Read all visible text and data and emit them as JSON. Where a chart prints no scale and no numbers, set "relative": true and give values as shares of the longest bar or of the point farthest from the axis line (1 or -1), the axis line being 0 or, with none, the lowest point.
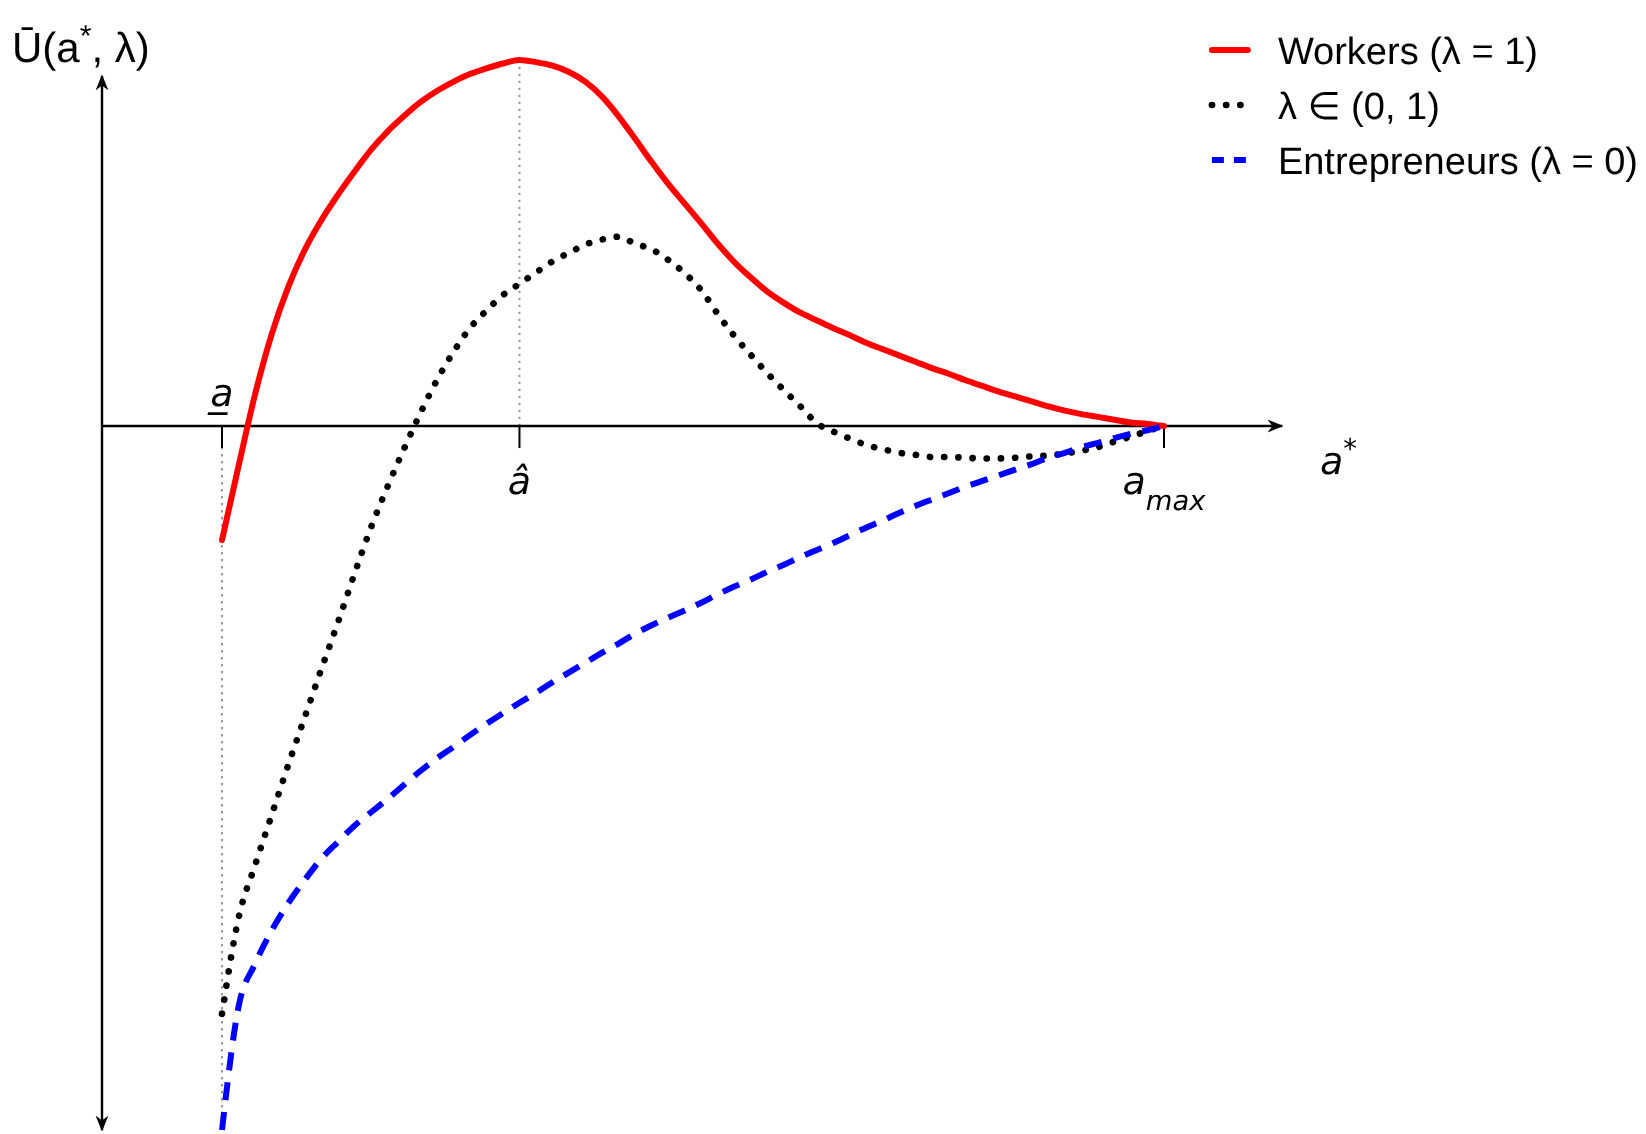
{
  "chart_data": {
    "type": "line",
    "relative": true,
    "xlabel": "a$^{*}$",
    "ylabel": "Ū(a$^{*}$, λ)",
    "tick_labels": "x",
    "legend": "top right",
    "categories": [
      "a̲",
      null,
      null,
      null,
      null,
      null,
      null,
      null,
      null,
      null,
      null,
      null,
      null,
      null,
      null,
      null,
      null,
      null,
      "â",
      null,
      null,
      null,
      null,
      null,
      null,
      null,
      null,
      null,
      null,
      null,
      null,
      null,
      null,
      null,
      null,
      null,
      null,
      null,
      null,
      null,
      null,
      null,
      null,
      null,
      null,
      null,
      null,
      null,
      null,
      null,
      null,
      null,
      null,
      null,
      null,
      null,
      null,
      "a$_{max}$"
    ],
    "series": [
      {
        "name": "Workers (λ = 1)",
        "color": "#ff0000",
        "line_style": "solid",
        "values": [
          -0.162,
          -0.057,
          0.045,
          0.13,
          0.197,
          0.25,
          0.292,
          0.328,
          0.361,
          0.392,
          0.418,
          0.44,
          0.46,
          0.476,
          0.489,
          0.5,
          0.508,
          0.515,
          0.52,
          0.517,
          0.512,
          0.503,
          0.489,
          0.468,
          0.44,
          0.408,
          0.375,
          0.344,
          0.316,
          0.288,
          0.259,
          0.233,
          0.211,
          0.191,
          0.175,
          0.161,
          0.15,
          0.139,
          0.129,
          0.118,
          0.109,
          0.1,
          0.091,
          0.082,
          0.074,
          0.065,
          0.057,
          0.049,
          0.042,
          0.035,
          0.028,
          0.022,
          0.017,
          0.013,
          0.009,
          0.005,
          0.003,
          0
        ]
      },
      {
        "name": "λ ∈ (0, 1)",
        "color": "#000000",
        "line_style": "dotted",
        "values": [
          -0.835,
          -0.699,
          -0.624,
          -0.553,
          -0.482,
          -0.414,
          -0.346,
          -0.28,
          -0.211,
          -0.145,
          -0.087,
          -0.033,
          0.018,
          0.065,
          0.105,
          0.139,
          0.164,
          0.186,
          0.202,
          0.218,
          0.234,
          0.246,
          0.258,
          0.265,
          0.269,
          0.259,
          0.251,
          0.236,
          0.217,
          0.193,
          0.159,
          0.128,
          0.101,
          0.075,
          0.051,
          0.028,
          0.004,
          -0.008,
          -0.018,
          -0.027,
          -0.033,
          -0.038,
          -0.041,
          -0.044,
          -0.044,
          -0.045,
          -0.046,
          -0.046,
          -0.045,
          -0.043,
          -0.042,
          -0.039,
          -0.035,
          -0.03,
          -0.022,
          -0.015,
          -0.007,
          0
        ]
      },
      {
        "name": "Entrepreneurs (λ = 0)",
        "color": "#0000ff",
        "line_style": "dashed",
        "values": [
          -1,
          -0.825,
          -0.764,
          -0.717,
          -0.678,
          -0.645,
          -0.615,
          -0.591,
          -0.568,
          -0.549,
          -0.53,
          -0.51,
          -0.49,
          -0.472,
          -0.456,
          -0.439,
          -0.423,
          -0.408,
          -0.393,
          -0.379,
          -0.364,
          -0.35,
          -0.336,
          -0.322,
          -0.309,
          -0.295,
          -0.283,
          -0.272,
          -0.262,
          -0.251,
          -0.239,
          -0.228,
          -0.218,
          -0.207,
          -0.197,
          -0.186,
          -0.176,
          -0.166,
          -0.155,
          -0.144,
          -0.134,
          -0.123,
          -0.113,
          -0.104,
          -0.095,
          -0.086,
          -0.078,
          -0.07,
          -0.062,
          -0.054,
          -0.045,
          -0.038,
          -0.03,
          -0.024,
          -0.017,
          -0.011,
          -0.006,
          0
        ]
      }
    ],
    "ref_lines": [
      {
        "axis": "x",
        "value": "a̲",
        "color": "#999999",
        "line_style": "dotted"
      },
      {
        "axis": "x",
        "value": "â",
        "color": "#999999",
        "line_style": "dotted"
      }
    ]
  }
}
